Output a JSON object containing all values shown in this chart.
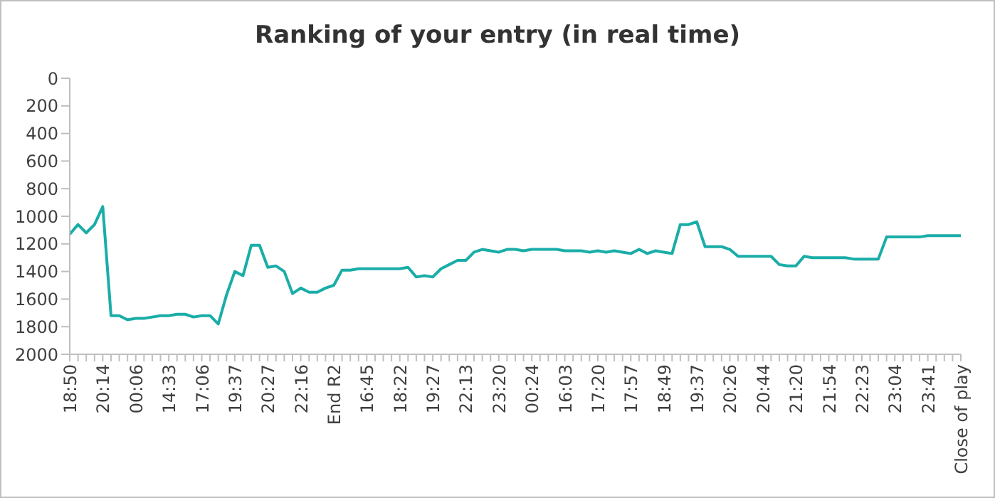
{
  "chart_data": {
    "type": "line",
    "title": "Ranking of your entry (in real time)",
    "categories": [
      "18:50",
      null,
      null,
      null,
      "20:14",
      null,
      null,
      null,
      "00:06",
      null,
      null,
      null,
      "14:33",
      null,
      null,
      null,
      "17:06",
      null,
      null,
      null,
      "19:37",
      null,
      null,
      null,
      "20:27",
      null,
      null,
      null,
      "22:16",
      null,
      null,
      null,
      "End R2",
      null,
      null,
      null,
      "16:45",
      null,
      null,
      null,
      "18:22",
      null,
      null,
      null,
      "19:27",
      null,
      null,
      null,
      "22:13",
      null,
      null,
      null,
      "23:20",
      null,
      null,
      null,
      "00:24",
      null,
      null,
      null,
      "16:03",
      null,
      null,
      null,
      "17:20",
      null,
      null,
      null,
      "17:57",
      null,
      null,
      null,
      "18:49",
      null,
      null,
      null,
      "19:37",
      null,
      null,
      null,
      "20:26",
      null,
      null,
      null,
      "20:44",
      null,
      null,
      null,
      "21:20",
      null,
      null,
      null,
      "21:54",
      null,
      null,
      null,
      "22:23",
      null,
      null,
      null,
      "23:04",
      null,
      null,
      null,
      "23:41",
      null,
      null,
      null,
      "Close of play"
    ],
    "series": [
      {
        "color": "#1aada8",
        "values": [
          1130,
          1060,
          1120,
          1060,
          930,
          1720,
          1720,
          1750,
          1740,
          1740,
          1730,
          1720,
          1720,
          1710,
          1710,
          1730,
          1720,
          1720,
          1780,
          1570,
          1400,
          1430,
          1210,
          1210,
          1370,
          1360,
          1400,
          1560,
          1520,
          1550,
          1550,
          1520,
          1500,
          1390,
          1390,
          1380,
          1380,
          1380,
          1380,
          1380,
          1380,
          1370,
          1440,
          1430,
          1440,
          1380,
          1350,
          1320,
          1320,
          1260,
          1240,
          1250,
          1260,
          1240,
          1240,
          1250,
          1240,
          1240,
          1240,
          1240,
          1250,
          1250,
          1250,
          1260,
          1250,
          1260,
          1250,
          1260,
          1270,
          1240,
          1270,
          1250,
          1260,
          1270,
          1060,
          1060,
          1040,
          1220,
          1220,
          1220,
          1240,
          1290,
          1290,
          1290,
          1290,
          1290,
          1350,
          1360,
          1360,
          1290,
          1300,
          1300,
          1300,
          1300,
          1300,
          1310,
          1310,
          1310,
          1310,
          1150,
          1150,
          1150,
          1150,
          1150,
          1140,
          1140,
          1140,
          1140,
          1140
        ]
      }
    ],
    "ylim": [
      2000,
      0
    ],
    "yticks": [
      0,
      200,
      400,
      600,
      800,
      1000,
      1200,
      1400,
      1600,
      1800,
      2000
    ],
    "grid": false,
    "legend": false,
    "marker": "none",
    "line_style": "solid"
  }
}
